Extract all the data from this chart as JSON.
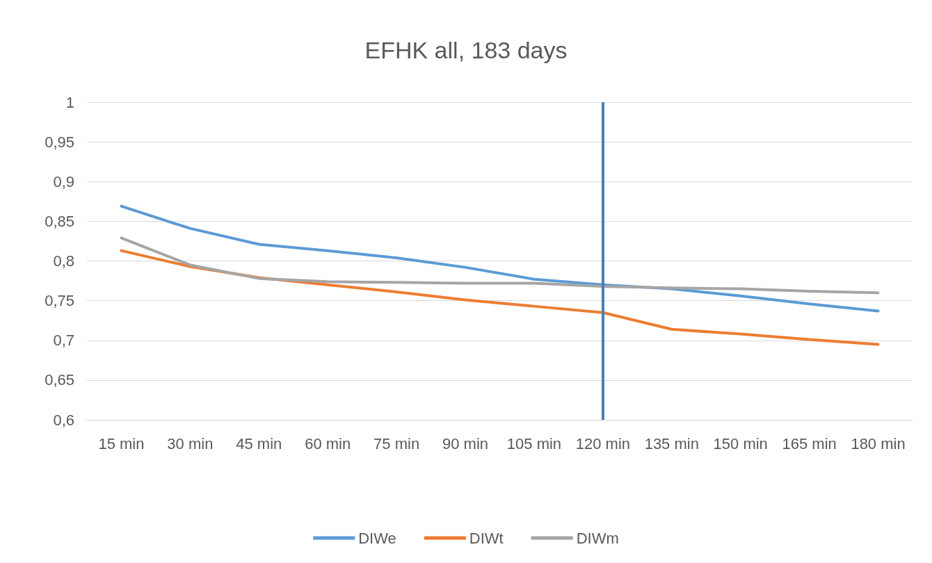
{
  "chart_data": {
    "type": "line",
    "title": "EFHK all, 183 days",
    "categories": [
      "15 min",
      "30 min",
      "45 min",
      "60 min",
      "75 min",
      "90 min",
      "105 min",
      "120 min",
      "135 min",
      "150 min",
      "165 min",
      "180 min"
    ],
    "series": [
      {
        "name": "DIWe",
        "color": "#5b9bd5",
        "values": [
          0.869,
          0.841,
          0.821,
          0.813,
          0.804,
          0.792,
          0.777,
          0.77,
          0.765,
          0.756,
          0.746,
          0.737
        ]
      },
      {
        "name": "DIWt",
        "color": "#ed7d31",
        "values": [
          0.813,
          0.793,
          0.779,
          0.77,
          0.761,
          0.751,
          0.743,
          0.735,
          0.714,
          0.708,
          0.701,
          0.695
        ]
      },
      {
        "name": "DIWm",
        "color": "#a5a5a5",
        "values": [
          0.829,
          0.795,
          0.778,
          0.774,
          0.773,
          0.772,
          0.772,
          0.768,
          0.766,
          0.765,
          0.762,
          0.76
        ]
      }
    ],
    "ylim": [
      0.6,
      1
    ],
    "yticks": [
      {
        "value": 0.6,
        "label": "0,6"
      },
      {
        "value": 0.65,
        "label": "0,65"
      },
      {
        "value": 0.7,
        "label": "0,7"
      },
      {
        "value": 0.75,
        "label": "0,75"
      },
      {
        "value": 0.8,
        "label": "0,8"
      },
      {
        "value": 0.85,
        "label": "0,85"
      },
      {
        "value": 0.9,
        "label": "0,9"
      },
      {
        "value": 0.95,
        "label": "0,95"
      },
      {
        "value": 1,
        "label": "1"
      }
    ],
    "ref_lines": [
      {
        "axis": "x",
        "value": "120 min",
        "color": "#4a7ebb"
      }
    ],
    "grid": "y",
    "legend": "bottom",
    "marker": "none",
    "line_style": "solid"
  }
}
